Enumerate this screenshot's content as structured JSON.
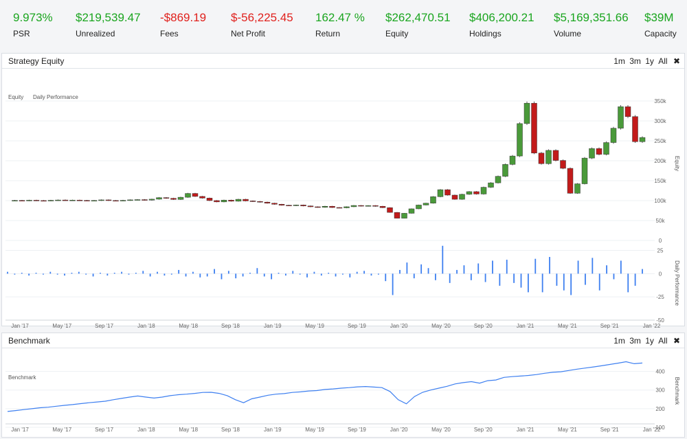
{
  "stats": [
    {
      "value": "9.973%",
      "label": "PSR",
      "tone": "pos"
    },
    {
      "value": "$219,539.47",
      "label": "Unrealized",
      "tone": "pos"
    },
    {
      "value": "-$869.19",
      "label": "Fees",
      "tone": "neg"
    },
    {
      "value": "$-56,225.45",
      "label": "Net Profit",
      "tone": "neg"
    },
    {
      "value": "162.47 %",
      "label": "Return",
      "tone": "pos"
    },
    {
      "value": "$262,470.51",
      "label": "Equity",
      "tone": "pos"
    },
    {
      "value": "$406,200.21",
      "label": "Holdings",
      "tone": "pos"
    },
    {
      "value": "$5,169,351.66",
      "label": "Volume",
      "tone": "pos"
    },
    {
      "value": "$39M",
      "label": "Capacity",
      "tone": "pos"
    }
  ],
  "colors": {
    "positive": "#1aa51f",
    "negative": "#e0201c",
    "line": "#3d7ff0",
    "bar": "#3d7ff0",
    "candle_up": "#4a9a3a",
    "candle_down": "#c21b1b"
  },
  "range_buttons": [
    "1m",
    "3m",
    "1y",
    "All"
  ],
  "close_label": "✖",
  "equity_panel": {
    "title": "Strategy Equity",
    "legend_equity": "Equity",
    "legend_daily": "Daily Performance",
    "equity_axis_label": "Equity",
    "daily_axis_label": "Daily Performance"
  },
  "benchmark_panel": {
    "title": "Benchmark",
    "legend": "Benchmark",
    "axis_label": "Benchmark"
  },
  "x_ticks": [
    "Jan '17",
    "May '17",
    "Sep '17",
    "Jan '18",
    "May '18",
    "Sep '18",
    "Jan '19",
    "May '19",
    "Sep '19",
    "Jan '20",
    "May '20",
    "Sep '20",
    "Jan '21",
    "May '21",
    "Sep '21",
    "Jan '22"
  ],
  "chart_data": [
    {
      "type": "line",
      "title": "Strategy Equity",
      "series": [
        {
          "name": "Equity",
          "style": "candlestick",
          "values": [
            100000,
            100500,
            99800,
            101000,
            100200,
            99500,
            100800,
            101500,
            100900,
            101200,
            100600,
            99900,
            100400,
            101800,
            100300,
            99600,
            100700,
            101900,
            102500,
            101300,
            103600,
            107500,
            105800,
            102900,
            108400,
            118000,
            110500,
            106300,
            100100,
            96800,
            101200,
            98500,
            103300,
            99200,
            97800,
            96200,
            93500,
            90800,
            88400,
            87200,
            88900,
            86600,
            84500,
            83200,
            85800,
            82700,
            81900,
            84600,
            87800,
            86200,
            87500,
            85800,
            82300,
            70400,
            55800,
            68200,
            79400,
            88900,
            93500,
            109800,
            127400,
            113800,
            103300,
            115800,
            122500,
            116500,
            133500,
            144600,
            161000,
            190800,
            211900,
            293300,
            344500,
            219300,
            192700,
            226000,
            200800,
            181000,
            118400,
            142200,
            206700,
            230700,
            216100,
            245700,
            281700,
            335600,
            310900,
            247900,
            258400
          ]
        }
      ],
      "ylabel": "Equity",
      "ylim": [
        0,
        350000
      ],
      "yticks": [
        "0",
        "50k",
        "100k",
        "150k",
        "200k",
        "250k",
        "300k",
        "350k"
      ]
    },
    {
      "type": "bar",
      "title": "Daily Performance",
      "series": [
        {
          "name": "Daily Performance",
          "values": [
            2,
            -1,
            1,
            -2,
            1,
            -1,
            2,
            -1,
            -2,
            1,
            2,
            -1,
            -3,
            1,
            -2,
            1,
            2,
            -1,
            1,
            3,
            -3,
            2,
            -2,
            -1,
            4,
            -3,
            2,
            -4,
            -3,
            5,
            -6,
            3,
            -5,
            -3,
            1,
            6,
            -3,
            -6,
            1,
            -2,
            3,
            -1,
            -4,
            2,
            -2,
            1,
            -3,
            -1,
            -4,
            2,
            3,
            -2,
            -1,
            -8,
            -23,
            4,
            12,
            -5,
            10,
            6,
            -7,
            30,
            -10,
            4,
            9,
            -7,
            11,
            -9,
            14,
            -13,
            15,
            -10,
            -15,
            -20,
            16,
            -20,
            18,
            -13,
            -18,
            -23,
            14,
            -12,
            17,
            -18,
            9,
            -6,
            14,
            -20,
            -13,
            5
          ]
        }
      ],
      "ylabel": "Daily Performance",
      "ylim": [
        -50,
        35
      ],
      "yticks": [
        "-50",
        "-25",
        "0",
        "25"
      ]
    },
    {
      "type": "line",
      "title": "Benchmark",
      "series": [
        {
          "name": "Benchmark",
          "values": [
            185,
            190,
            195,
            200,
            205,
            208,
            213,
            218,
            222,
            227,
            232,
            236,
            240,
            248,
            255,
            262,
            268,
            262,
            257,
            262,
            270,
            275,
            278,
            282,
            287,
            288,
            282,
            270,
            248,
            232,
            253,
            262,
            272,
            278,
            281,
            287,
            290,
            295,
            297,
            303,
            306,
            310,
            313,
            317,
            319,
            316,
            313,
            292,
            248,
            226,
            265,
            288,
            300,
            310,
            320,
            333,
            340,
            345,
            337,
            350,
            354,
            368,
            372,
            375,
            378,
            383,
            390,
            395,
            398,
            405,
            412,
            418,
            424,
            430,
            437,
            444,
            452,
            441,
            445
          ]
        }
      ],
      "ylabel": "Benchmark",
      "ylim": [
        100,
        450
      ],
      "yticks": [
        "100",
        "200",
        "300",
        "400"
      ]
    }
  ]
}
